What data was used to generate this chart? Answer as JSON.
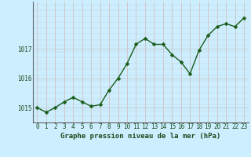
{
  "x": [
    0,
    1,
    2,
    3,
    4,
    5,
    6,
    7,
    8,
    9,
    10,
    11,
    12,
    13,
    14,
    15,
    16,
    17,
    18,
    19,
    20,
    21,
    22,
    23
  ],
  "y": [
    1015.0,
    1014.85,
    1015.0,
    1015.2,
    1015.35,
    1015.2,
    1015.05,
    1015.1,
    1015.6,
    1016.0,
    1016.5,
    1017.15,
    1017.35,
    1017.15,
    1017.15,
    1016.8,
    1016.55,
    1016.15,
    1016.95,
    1017.45,
    1017.75,
    1017.85,
    1017.75,
    1018.05
  ],
  "line_color": "#1a5c1a",
  "marker_color": "#1a5c1a",
  "bg_color": "#cceeff",
  "grid_color_v": "#d4b8b8",
  "grid_color_h": "#c0c0c0",
  "xlabel": "Graphe pression niveau de la mer (hPa)",
  "xlabel_color": "#1a4a1a",
  "tick_color": "#1a4a1a",
  "ylim": [
    1014.5,
    1018.6
  ],
  "yticks": [
    1015,
    1016,
    1017
  ],
  "xticks": [
    0,
    1,
    2,
    3,
    4,
    5,
    6,
    7,
    8,
    9,
    10,
    11,
    12,
    13,
    14,
    15,
    16,
    17,
    18,
    19,
    20,
    21,
    22,
    23
  ],
  "tick_fontsize": 5.5,
  "label_fontsize": 6.5,
  "line_width": 1.0,
  "marker_size": 2.5
}
